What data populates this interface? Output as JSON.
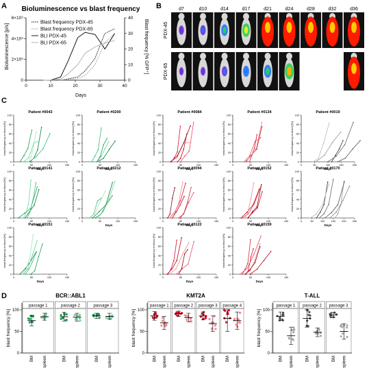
{
  "panelA": {
    "letter": "A",
    "chart_data": {
      "type": "line",
      "title": "Bioluminescence vs blast frequency",
      "xlabel": "Days",
      "ylabel_left": "Bioluminescence [p/s]",
      "ylabel_right": "Blast frequency [% GFP⁺]",
      "xlim": [
        0,
        40
      ],
      "ylim_left": [
        0,
        6000000000.0
      ],
      "ylim_right": [
        0,
        40
      ],
      "xticks": [
        "0",
        "10",
        "20",
        "30",
        "40"
      ],
      "yticks_left": [
        "0",
        "2×10⁹",
        "4×10⁹",
        "6×10⁹"
      ],
      "yticks_right": [
        "0",
        "10",
        "20",
        "30",
        "40"
      ],
      "legend": [
        "Blast frequency PDX-45",
        "Blast frequency PDX-65",
        "BLI PDX-45",
        "BLI PDX-65"
      ],
      "series": [
        {
          "name": "Blast frequency PDX-45",
          "axis": "right",
          "style": "dotted-black",
          "x": [
            14,
            21,
            24,
            28,
            32,
            36
          ],
          "y": [
            0,
            2,
            6,
            14,
            30,
            33
          ]
        },
        {
          "name": "Blast frequency PDX-65",
          "axis": "right",
          "style": "dotted-gray",
          "x": [
            14,
            21,
            24,
            28,
            32,
            36
          ],
          "y": [
            0,
            1,
            3,
            10,
            24,
            30
          ]
        },
        {
          "name": "BLI PDX-45",
          "axis": "left",
          "style": "solid-black",
          "x": [
            7,
            10,
            14,
            17,
            21,
            24,
            28,
            32,
            36
          ],
          "y": [
            0,
            10000000.0,
            300000000.0,
            1800000000.0,
            4100000000.0,
            4600000000.0,
            4400000000.0,
            3000000000.0,
            4500000000.0
          ]
        },
        {
          "name": "BLI PDX-65",
          "axis": "left",
          "style": "solid-gray",
          "x": [
            7,
            10,
            14,
            17,
            21,
            24,
            28,
            32,
            36
          ],
          "y": [
            0,
            10000000.0,
            100000000.0,
            600000000.0,
            1500000000.0,
            2600000000.0,
            3200000000.0,
            3600000000.0,
            3800000000.0
          ]
        }
      ]
    }
  },
  "panelB": {
    "letter": "B",
    "days": [
      "d7",
      "d10",
      "d14",
      "d17",
      "d21",
      "d24",
      "d28",
      "d32",
      "d36"
    ],
    "rows": [
      {
        "label": "PDX-45",
        "intensity": [
          0.15,
          0.2,
          0.35,
          0.5,
          0.95,
          1,
          1,
          1,
          1
        ]
      },
      {
        "label": "PDX-65",
        "intensity": [
          0.05,
          0.1,
          0.2,
          0.3,
          0.45,
          0.7,
          null,
          null,
          0.95
        ]
      }
    ]
  },
  "panelC": {
    "letter": "C",
    "xlabel": "Days",
    "ylabel": "blast frequency in blood [%]",
    "chart_data": [
      {
        "title": "Patient #0043",
        "group": "green",
        "xmax": 150,
        "ymax": 100
      },
      {
        "title": "Patient #0200",
        "group": "green",
        "xmax": 150,
        "ymax": 100
      },
      {
        "title": "Patient #0084",
        "group": "red",
        "xmax": 150,
        "ymax": 100
      },
      {
        "title": "Patient #0134",
        "group": "red",
        "xmax": 150,
        "ymax": 100
      },
      {
        "title": "Patient #0019",
        "group": "gray",
        "xmax": 200,
        "ymax": 100
      },
      {
        "title": "Patient #0141",
        "group": "green",
        "xmax": 150,
        "ymax": 100
      },
      {
        "title": "Patient #0212",
        "group": "green",
        "xmax": 150,
        "ymax": 100
      },
      {
        "title": "Patient #0094",
        "group": "red",
        "xmax": 150,
        "ymax": 100
      },
      {
        "title": "Patient #0152",
        "group": "red",
        "xmax": 150,
        "ymax": 100
      },
      {
        "title": "Patient #0170",
        "group": "gray",
        "xmax": 250,
        "ymax": 100
      },
      {
        "title": "Patient #0151",
        "group": "green",
        "xmax": 150,
        "ymax": 100
      },
      null,
      {
        "title": "Patient #0122",
        "group": "red",
        "xmax": 150,
        "ymax": 100
      },
      {
        "title": "Patient #0159",
        "group": "red",
        "xmax": 150,
        "ymax": 100
      },
      null
    ]
  },
  "panelD": {
    "letter": "D",
    "ylabel": "blast frequency [%]",
    "yticks": [
      "0",
      "50",
      "100"
    ],
    "chart_data": [
      {
        "type": "scatter",
        "title": "BCR::ABL1",
        "color": "green",
        "passages": [
          {
            "label": "passage 1",
            "groups": [
              {
                "name": "BM",
                "mean": 75,
                "sd": 12
              },
              {
                "name": "spleen",
                "mean": 84,
                "sd": 8
              }
            ]
          },
          {
            "label": "passage 2",
            "groups": [
              {
                "name": "BM",
                "mean": 84,
                "sd": 10
              },
              {
                "name": "spleen",
                "mean": 83,
                "sd": 9
              }
            ]
          },
          {
            "label": "passage 3",
            "groups": [
              {
                "name": "BM",
                "mean": 86,
                "sd": 6
              },
              {
                "name": "spleen",
                "mean": 85,
                "sd": 7
              }
            ]
          }
        ]
      },
      {
        "type": "scatter",
        "title": "KMT2A",
        "color": "red",
        "passages": [
          {
            "label": "passage 1",
            "groups": [
              {
                "name": "BM",
                "mean": 86,
                "sd": 10
              },
              {
                "name": "spleen",
                "mean": 70,
                "sd": 15
              }
            ]
          },
          {
            "label": "passage 2",
            "groups": [
              {
                "name": "BM",
                "mean": 91,
                "sd": 6
              },
              {
                "name": "spleen",
                "mean": 82,
                "sd": 10
              }
            ]
          },
          {
            "label": "passage 3",
            "groups": [
              {
                "name": "BM",
                "mean": 86,
                "sd": 9
              },
              {
                "name": "spleen",
                "mean": 68,
                "sd": 18
              }
            ]
          },
          {
            "label": "passage 4",
            "groups": [
              {
                "name": "BM",
                "mean": 80,
                "sd": 30
              },
              {
                "name": "spleen",
                "mean": 75,
                "sd": 20
              }
            ]
          }
        ]
      },
      {
        "type": "scatter",
        "title": "T-ALL",
        "color": "gray",
        "passages": [
          {
            "label": "passage 1",
            "groups": [
              {
                "name": "BM",
                "mean": 85,
                "sd": 10
              },
              {
                "name": "spleen",
                "mean": 40,
                "sd": 20
              }
            ]
          },
          {
            "label": "passage 2",
            "groups": [
              {
                "name": "BM",
                "mean": 80,
                "sd": 20
              },
              {
                "name": "spleen",
                "mean": 48,
                "sd": 10
              }
            ]
          },
          {
            "label": "passage 3",
            "groups": [
              {
                "name": "BM",
                "mean": 88,
                "sd": 6
              },
              {
                "name": "spleen",
                "mean": 50,
                "sd": 18
              }
            ]
          }
        ]
      }
    ]
  }
}
